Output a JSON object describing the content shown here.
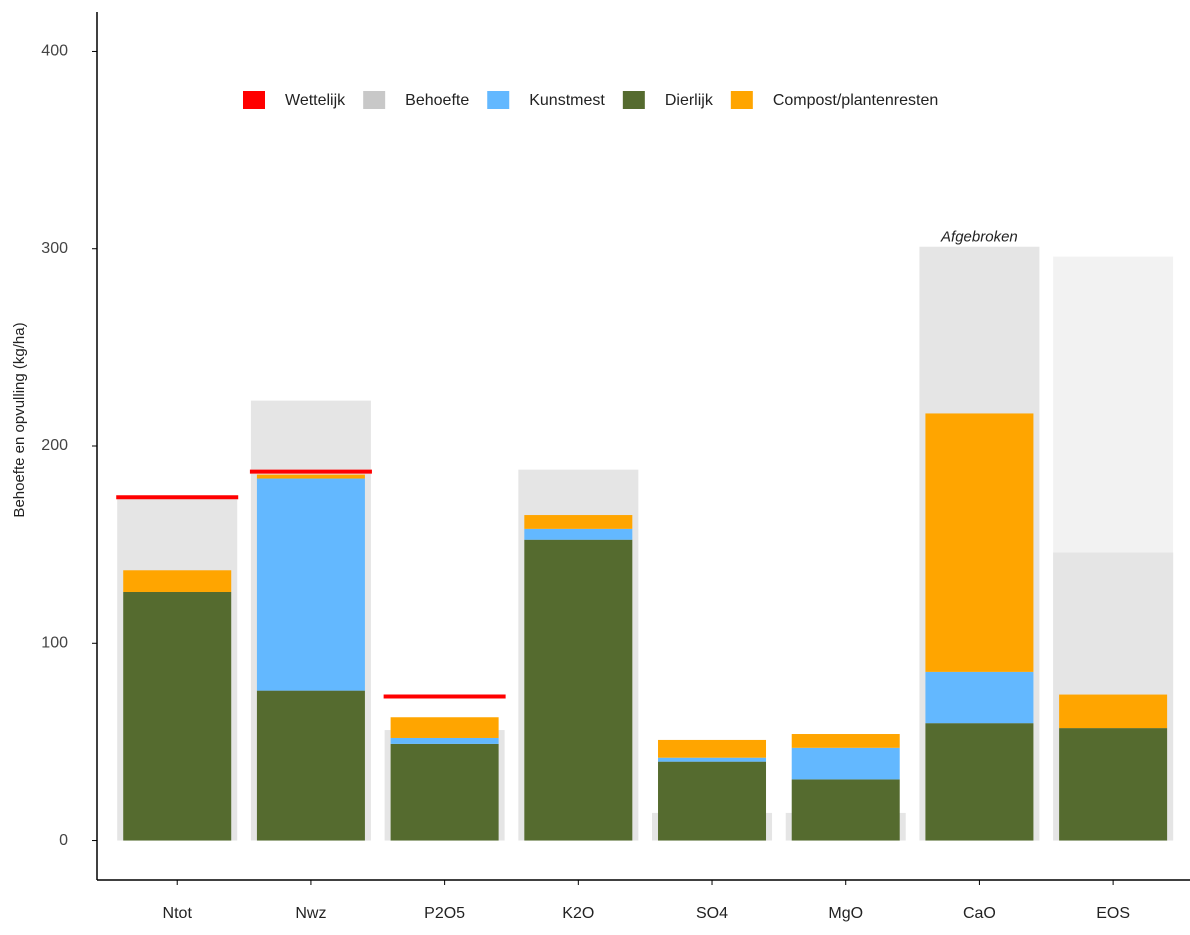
{
  "chart_data": {
    "type": "bar",
    "y_label": "Behoefte en opvulling (kg/ha)",
    "categories": [
      "Ntot",
      "Nwz",
      "P2O5",
      "K2O",
      "SO4",
      "MgO",
      "CaO",
      "EOS"
    ],
    "series": [
      {
        "name": "Wettelijk",
        "color": "#ff0000",
        "kind": "line",
        "values": [
          174,
          187,
          73,
          null,
          null,
          null,
          null,
          null
        ]
      },
      {
        "name": "Behoefte",
        "color": "#e5e5e5",
        "kind": "background",
        "values": [
          174,
          223,
          56,
          188,
          14,
          14,
          301,
          146
        ]
      },
      {
        "name": "Kunstmest",
        "color": "#63b8ff",
        "kind": "stack",
        "values": [
          0,
          107.5,
          3,
          5.5,
          2,
          16,
          26,
          0
        ]
      },
      {
        "name": "Dierlijk",
        "color": "#556b2f",
        "kind": "stack",
        "values": [
          126,
          76,
          49,
          152.5,
          40,
          31,
          59.5,
          57
        ]
      },
      {
        "name": "Compost/plantenresten",
        "color": "#ffa500",
        "kind": "stack",
        "values": [
          11,
          2,
          10.5,
          7,
          9,
          7,
          131,
          17
        ]
      }
    ],
    "extra_background": {
      "color": "#f2f2f2",
      "values": [
        null,
        null,
        null,
        null,
        null,
        null,
        null,
        296
      ]
    },
    "stack_order": [
      3,
      2,
      4
    ],
    "annotation": {
      "text": "Afgebroken",
      "category_index": 6,
      "series_index": 1
    },
    "ylim": [
      -20,
      420
    ],
    "yticks": [
      0,
      100,
      200,
      300,
      400
    ]
  }
}
